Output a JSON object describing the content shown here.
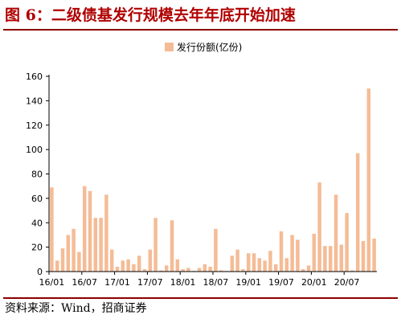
{
  "header": {
    "title": "图 6：二级债基发行规模去年年底开始加速"
  },
  "footer": {
    "source": "资料来源：Wind，招商证券"
  },
  "colors": {
    "bar": "#f4bc96",
    "title": "#b00000",
    "rule": "#8b0000"
  },
  "chart_data": {
    "type": "bar",
    "title": "",
    "xlabel": "",
    "ylabel": "",
    "ylim": [
      0,
      160
    ],
    "yticks": [
      0,
      20,
      40,
      60,
      80,
      100,
      120,
      140,
      160
    ],
    "xtick_labels": [
      "16/01",
      "16/07",
      "17/01",
      "17/07",
      "18/01",
      "18/07",
      "19/01",
      "19/07",
      "20/01",
      "20/07"
    ],
    "xtick_positions": [
      0,
      6,
      12,
      18,
      24,
      30,
      36,
      42,
      48,
      54
    ],
    "legend": {
      "position": "top-center"
    },
    "series": [
      {
        "name": "发行份额(亿份)",
        "categories": [
          "16/01",
          "16/02",
          "16/03",
          "16/04",
          "16/05",
          "16/06",
          "16/07",
          "16/08",
          "16/09",
          "16/10",
          "16/11",
          "16/12",
          "17/01",
          "17/02",
          "17/03",
          "17/04",
          "17/05",
          "17/06",
          "17/07",
          "17/08",
          "17/09",
          "17/10",
          "17/11",
          "17/12",
          "18/01",
          "18/02",
          "18/03",
          "18/04",
          "18/05",
          "18/06",
          "18/07",
          "18/08",
          "18/09",
          "18/10",
          "18/11",
          "18/12",
          "19/01",
          "19/02",
          "19/03",
          "19/04",
          "19/05",
          "19/06",
          "19/07",
          "19/08",
          "19/09",
          "19/10",
          "19/11",
          "19/12",
          "20/01",
          "20/02",
          "20/03",
          "20/04",
          "20/05",
          "20/06",
          "20/07",
          "20/08",
          "20/09",
          "20/10",
          "20/11",
          "20/12"
        ],
        "values": [
          69,
          9,
          19,
          30,
          35,
          16,
          70,
          66,
          44,
          44,
          63,
          18,
          4,
          9,
          10,
          6,
          13,
          2,
          18,
          44,
          1,
          5,
          42,
          10,
          2,
          3,
          0.5,
          3,
          6,
          4,
          35,
          1,
          0.5,
          13,
          18,
          2,
          15,
          15,
          11,
          9,
          17,
          6,
          33,
          11,
          30,
          26,
          2,
          5,
          31,
          73,
          21,
          21,
          63,
          22,
          48,
          1,
          97,
          25,
          150,
          27
        ]
      }
    ]
  }
}
